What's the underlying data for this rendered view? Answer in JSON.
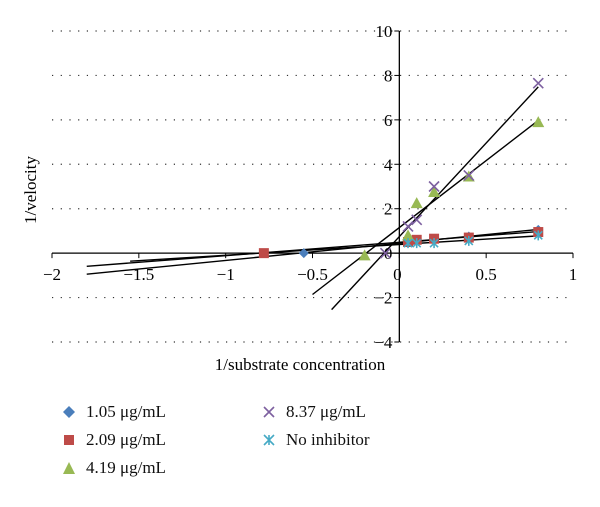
{
  "chart_data": {
    "type": "scatter",
    "xlabel": "1/substrate concentration",
    "ylabel": "1/velocity",
    "xlim": [
      -2,
      1
    ],
    "ylim": [
      -4,
      10
    ],
    "xticks": [
      "-2",
      "-1.5",
      "-1",
      "-0.5",
      "0",
      "0.5",
      "1"
    ],
    "xtick_values": [
      -2,
      -1.5,
      -1,
      -0.5,
      0,
      0.5,
      1
    ],
    "yticks": [
      "-4",
      "-2",
      "0",
      "2",
      "4",
      "6",
      "8",
      "10"
    ],
    "ytick_values": [
      -4,
      -2,
      0,
      2,
      4,
      6,
      8,
      10
    ],
    "grid": "horizontal dotted",
    "legend_placement": "bottom",
    "series": [
      {
        "name": "1.05 μg/mL",
        "marker": "diamond",
        "color": "#4a7ebb",
        "x": [
          -0.55,
          0.05,
          0.1,
          0.2,
          0.4,
          0.8
        ],
        "y": [
          0.0,
          0.5,
          0.55,
          0.6,
          0.75,
          1.05
        ],
        "trend_x": [
          -1.8,
          0.8
        ]
      },
      {
        "name": "2.09 μg/mL",
        "marker": "square",
        "color": "#be4b48",
        "x": [
          -0.78,
          0.05,
          0.1,
          0.2,
          0.4,
          0.8
        ],
        "y": [
          0.0,
          0.5,
          0.6,
          0.65,
          0.7,
          0.95
        ],
        "trend_x": [
          -1.8,
          0.8
        ]
      },
      {
        "name": "4.19 μg/mL",
        "marker": "triangle",
        "color": "#98b954",
        "x": [
          -0.2,
          0.05,
          0.1,
          0.2,
          0.4,
          0.8
        ],
        "y": [
          -0.1,
          0.8,
          2.25,
          2.75,
          3.45,
          5.9
        ],
        "trend_x": [
          -0.5,
          0.8
        ]
      },
      {
        "name": "8.37 μg/mL",
        "marker": "x",
        "color": "#7d60a0",
        "x": [
          -0.08,
          0.05,
          0.1,
          0.2,
          0.4,
          0.8
        ],
        "y": [
          0.0,
          1.2,
          1.5,
          3.0,
          3.5,
          7.65
        ],
        "trend_x": [
          -0.39,
          0.8
        ]
      },
      {
        "name": "No inhibitor",
        "marker": "star",
        "color": "#46aac5",
        "x": [
          0.05,
          0.1,
          0.2,
          0.4,
          0.8
        ],
        "y": [
          0.45,
          0.45,
          0.45,
          0.55,
          0.8
        ],
        "trend_x": [
          -1.55,
          0.8
        ]
      }
    ]
  }
}
